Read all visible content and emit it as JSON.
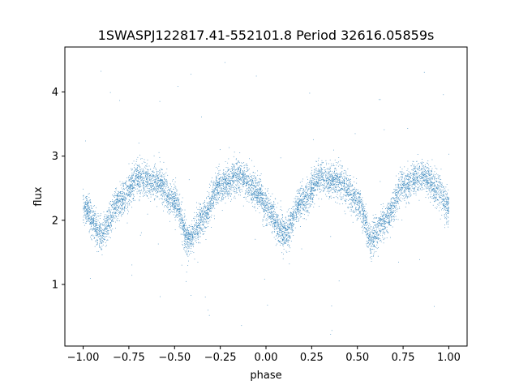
{
  "chart_data": {
    "type": "scatter",
    "title": "1SWASPJ122817.41-552101.8 Period 32616.05859s",
    "xlabel": "phase",
    "ylabel": "flux",
    "xlim": [
      -1.1,
      1.1
    ],
    "ylim": [
      0.04,
      4.7
    ],
    "x_ticks": [
      -1.0,
      -0.75,
      -0.5,
      -0.25,
      0.0,
      0.25,
      0.5,
      0.75,
      1.0
    ],
    "x_tick_labels": [
      "−1.00",
      "−0.75",
      "−0.50",
      "−0.25",
      "0.00",
      "0.25",
      "0.50",
      "0.75",
      "1.00"
    ],
    "y_ticks": [
      1,
      2,
      3,
      4
    ],
    "y_tick_labels": [
      "1",
      "2",
      "3",
      "4"
    ],
    "grid": false,
    "point_color": "#1f77b4",
    "series": [
      {
        "x_range": [
          -1.0,
          1.0
        ],
        "approx_point_count": 8000,
        "trend_phase": [
          -1.0,
          -0.9,
          -0.8,
          -0.7,
          -0.6,
          -0.5,
          -0.42,
          -0.35,
          -0.25,
          -0.15,
          -0.05,
          0.0,
          0.1,
          0.2,
          0.3,
          0.4,
          0.5,
          0.58,
          0.65,
          0.75,
          0.85,
          0.95,
          1.0
        ],
        "trend_flux": [
          2.2,
          1.8,
          2.3,
          2.65,
          2.6,
          2.3,
          1.7,
          2.0,
          2.55,
          2.7,
          2.45,
          2.2,
          1.8,
          2.3,
          2.65,
          2.6,
          2.3,
          1.7,
          2.0,
          2.55,
          2.7,
          2.45,
          2.2
        ],
        "scatter_std": 0.13,
        "outlier_range": [
          0.2,
          4.5
        ]
      }
    ]
  }
}
